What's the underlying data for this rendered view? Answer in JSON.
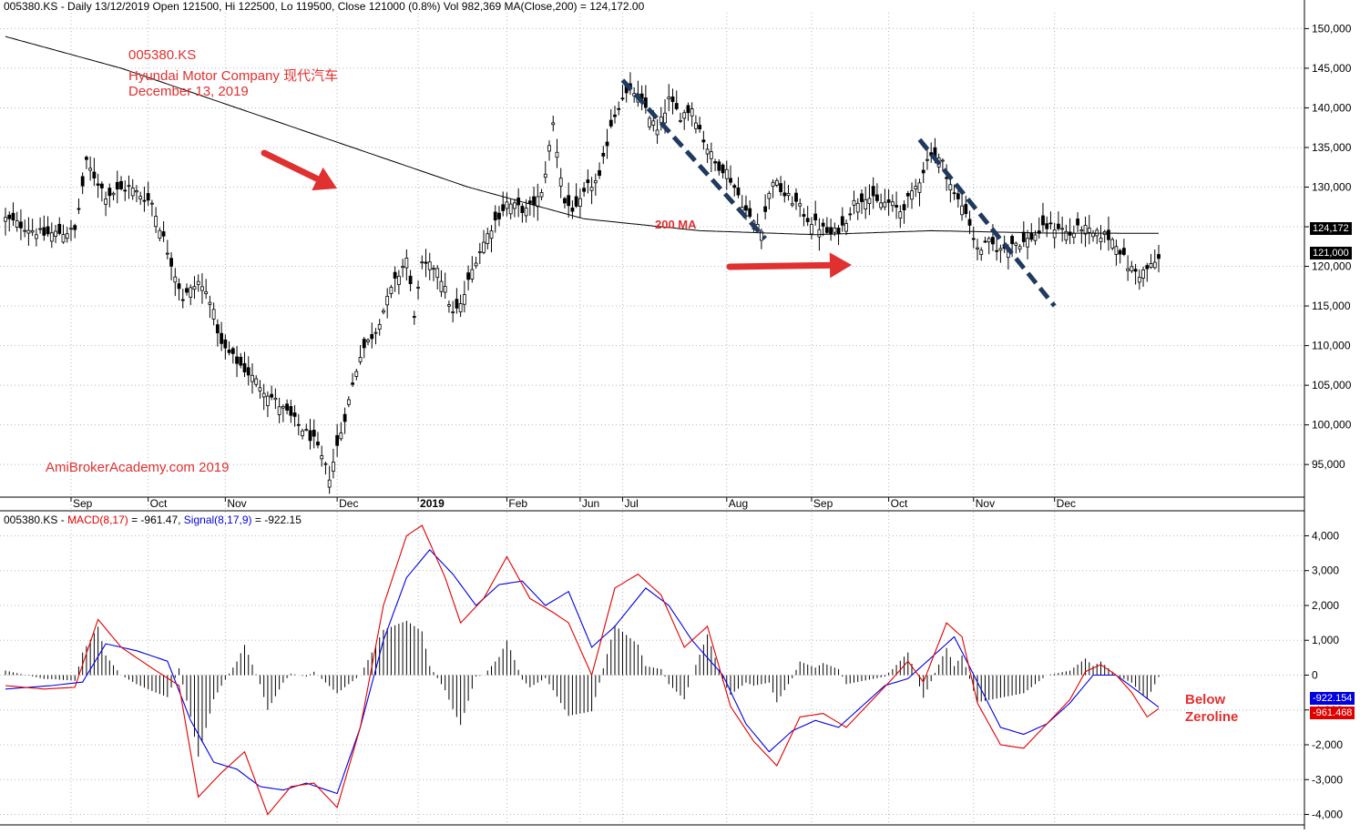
{
  "header": {
    "price_panel": "005380.KS - Daily 13/12/2019 Open 121500, Hi 122500, Lo 119500, Close 121000 (0.8%) Vol 982,369 MA(Close,200) = 124,172.00",
    "macd_prefix": "005380.KS - ",
    "macd_label": "MACD(8,17)",
    "macd_value": " = -961.47, ",
    "signal_label": "Signal(8,17,9)",
    "signal_value": " = -922.15"
  },
  "annotations": {
    "ticker": "005380.KS",
    "company": "Hyundai Motor Company  现代汽车",
    "date": "December 13, 2019",
    "watermark": "AmiBrokerAcademy.com  2019",
    "ma_label": "200 MA",
    "below_1": "Below",
    "below_2": "Zeroline"
  },
  "tags": {
    "ma": "124,172",
    "close": "121,000",
    "signal": "-922.154",
    "macd": "-961.468"
  },
  "colors": {
    "annotation": "#e03030",
    "macd": "#e00000",
    "signal": "#0000e0",
    "trendline": "#1f3a5f",
    "grid": "#b8b8b8"
  },
  "chart_data": [
    {
      "type": "candlestick",
      "title": "005380.KS - Daily 13/12/2019",
      "y_axis_side": "right",
      "ylim": [
        91000,
        152000
      ],
      "yticks": [
        95000,
        100000,
        105000,
        110000,
        115000,
        120000,
        125000,
        130000,
        135000,
        140000,
        145000,
        150000
      ],
      "ytick_labels": [
        "95,000",
        "100,000",
        "105,000",
        "110,000",
        "115,000",
        "120,000",
        "125,000",
        "130,000",
        "135,000",
        "140,000",
        "145,000",
        "150,000"
      ],
      "x_labels": [
        "Sep",
        "Oct",
        "Nov",
        "Dec",
        "2019",
        "Feb",
        "Jun",
        "Jul",
        "Aug",
        "Sep",
        "Oct",
        "Nov",
        "Dec"
      ],
      "close_key_points": [
        {
          "i": 0,
          "c": 126000
        },
        {
          "i": 10,
          "c": 124000
        },
        {
          "i": 18,
          "c": 124500
        },
        {
          "i": 21,
          "c": 133000
        },
        {
          "i": 26,
          "c": 129000
        },
        {
          "i": 32,
          "c": 130000
        },
        {
          "i": 38,
          "c": 128000
        },
        {
          "i": 42,
          "c": 122000
        },
        {
          "i": 46,
          "c": 116000
        },
        {
          "i": 50,
          "c": 118000
        },
        {
          "i": 53,
          "c": 116000
        },
        {
          "i": 56,
          "c": 110000
        },
        {
          "i": 62,
          "c": 107000
        },
        {
          "i": 68,
          "c": 104000
        },
        {
          "i": 74,
          "c": 101000
        },
        {
          "i": 80,
          "c": 98000
        },
        {
          "i": 84,
          "c": 93500
        },
        {
          "i": 88,
          "c": 101000
        },
        {
          "i": 92,
          "c": 109000
        },
        {
          "i": 96,
          "c": 112000
        },
        {
          "i": 100,
          "c": 117000
        },
        {
          "i": 104,
          "c": 121000
        },
        {
          "i": 106,
          "c": 114000
        },
        {
          "i": 108,
          "c": 120000
        },
        {
          "i": 112,
          "c": 120000
        },
        {
          "i": 116,
          "c": 114000
        },
        {
          "i": 118,
          "c": 115000
        },
        {
          "i": 122,
          "c": 121000
        },
        {
          "i": 126,
          "c": 125000
        },
        {
          "i": 130,
          "c": 128000
        },
        {
          "i": 135,
          "c": 127000
        },
        {
          "i": 139,
          "c": 129000
        },
        {
          "i": 142,
          "c": 138000
        },
        {
          "i": 145,
          "c": 128000
        },
        {
          "i": 148,
          "c": 127000
        },
        {
          "i": 151,
          "c": 130000
        },
        {
          "i": 154,
          "c": 131000
        },
        {
          "i": 157,
          "c": 138000
        },
        {
          "i": 160,
          "c": 141500
        },
        {
          "i": 163,
          "c": 142000
        },
        {
          "i": 166,
          "c": 140000
        },
        {
          "i": 169,
          "c": 137000
        },
        {
          "i": 172,
          "c": 141000
        },
        {
          "i": 175,
          "c": 139000
        },
        {
          "i": 178,
          "c": 140000
        },
        {
          "i": 181,
          "c": 136000
        },
        {
          "i": 184,
          "c": 133000
        },
        {
          "i": 187,
          "c": 132000
        },
        {
          "i": 190,
          "c": 129000
        },
        {
          "i": 193,
          "c": 126000
        },
        {
          "i": 196,
          "c": 125000
        },
        {
          "i": 199,
          "c": 131000
        },
        {
          "i": 202,
          "c": 129000
        },
        {
          "i": 205,
          "c": 128000
        },
        {
          "i": 208,
          "c": 126000
        },
        {
          "i": 211,
          "c": 125000
        },
        {
          "i": 214,
          "c": 124000
        },
        {
          "i": 217,
          "c": 125000
        },
        {
          "i": 220,
          "c": 128000
        },
        {
          "i": 223,
          "c": 129000
        },
        {
          "i": 226,
          "c": 128000
        },
        {
          "i": 229,
          "c": 128000
        },
        {
          "i": 232,
          "c": 127000
        },
        {
          "i": 235,
          "c": 129000
        },
        {
          "i": 237,
          "c": 131000
        },
        {
          "i": 240,
          "c": 134500
        },
        {
          "i": 243,
          "c": 133000
        },
        {
          "i": 246,
          "c": 129000
        },
        {
          "i": 249,
          "c": 127000
        },
        {
          "i": 252,
          "c": 122000
        },
        {
          "i": 255,
          "c": 123000
        },
        {
          "i": 258,
          "c": 122000
        },
        {
          "i": 261,
          "c": 123000
        },
        {
          "i": 264,
          "c": 123000
        },
        {
          "i": 267,
          "c": 124000
        },
        {
          "i": 270,
          "c": 125000
        },
        {
          "i": 273,
          "c": 125000
        },
        {
          "i": 276,
          "c": 124000
        },
        {
          "i": 279,
          "c": 125000
        },
        {
          "i": 282,
          "c": 124000
        },
        {
          "i": 285,
          "c": 124000
        },
        {
          "i": 288,
          "c": 123000
        },
        {
          "i": 291,
          "c": 120000
        },
        {
          "i": 294,
          "c": 119000
        },
        {
          "i": 297,
          "c": 120000
        },
        {
          "i": 299,
          "c": 121000
        }
      ],
      "ma200_key_points": [
        {
          "i": 0,
          "v": 149000
        },
        {
          "i": 30,
          "v": 145000
        },
        {
          "i": 60,
          "v": 140000
        },
        {
          "i": 90,
          "v": 135000
        },
        {
          "i": 120,
          "v": 130000
        },
        {
          "i": 150,
          "v": 126000
        },
        {
          "i": 180,
          "v": 124500
        },
        {
          "i": 210,
          "v": 124000
        },
        {
          "i": 240,
          "v": 124500
        },
        {
          "i": 270,
          "v": 124200
        },
        {
          "i": 299,
          "v": 124172
        }
      ],
      "last_close": 121000,
      "last_ma200": 124172
    },
    {
      "type": "line",
      "title": "MACD(8,17) / Signal(8,17,9)",
      "ylim": [
        -4300,
        4300
      ],
      "yticks": [
        -4000,
        -3000,
        -2000,
        -1000,
        0,
        1000,
        2000,
        3000,
        4000
      ],
      "ytick_labels": [
        "-4,000",
        "-3,000",
        "-2,000",
        "-1,000",
        "0",
        "1,000",
        "2,000",
        "3,000",
        "4,000"
      ],
      "series": [
        {
          "name": "MACD(8,17)",
          "key_points": [
            {
              "i": 0,
              "v": -300
            },
            {
              "i": 10,
              "v": -400
            },
            {
              "i": 18,
              "v": -350
            },
            {
              "i": 24,
              "v": 1600
            },
            {
              "i": 30,
              "v": 800
            },
            {
              "i": 38,
              "v": 200
            },
            {
              "i": 45,
              "v": -300
            },
            {
              "i": 50,
              "v": -3500
            },
            {
              "i": 56,
              "v": -2800
            },
            {
              "i": 62,
              "v": -2200
            },
            {
              "i": 68,
              "v": -4000
            },
            {
              "i": 74,
              "v": -3200
            },
            {
              "i": 80,
              "v": -3100
            },
            {
              "i": 86,
              "v": -3800
            },
            {
              "i": 92,
              "v": -1500
            },
            {
              "i": 98,
              "v": 2000
            },
            {
              "i": 104,
              "v": 4000
            },
            {
              "i": 108,
              "v": 4300
            },
            {
              "i": 114,
              "v": 2800
            },
            {
              "i": 118,
              "v": 1500
            },
            {
              "i": 124,
              "v": 2200
            },
            {
              "i": 130,
              "v": 3400
            },
            {
              "i": 136,
              "v": 2200
            },
            {
              "i": 142,
              "v": 1800
            },
            {
              "i": 146,
              "v": 1500
            },
            {
              "i": 152,
              "v": 0
            },
            {
              "i": 158,
              "v": 2500
            },
            {
              "i": 164,
              "v": 2900
            },
            {
              "i": 170,
              "v": 2300
            },
            {
              "i": 176,
              "v": 800
            },
            {
              "i": 182,
              "v": 1400
            },
            {
              "i": 188,
              "v": -900
            },
            {
              "i": 194,
              "v": -1900
            },
            {
              "i": 200,
              "v": -2600
            },
            {
              "i": 206,
              "v": -1200
            },
            {
              "i": 212,
              "v": -1100
            },
            {
              "i": 218,
              "v": -1500
            },
            {
              "i": 224,
              "v": -800
            },
            {
              "i": 230,
              "v": -100
            },
            {
              "i": 234,
              "v": 400
            },
            {
              "i": 238,
              "v": -200
            },
            {
              "i": 244,
              "v": 1500
            },
            {
              "i": 248,
              "v": 1100
            },
            {
              "i": 252,
              "v": -800
            },
            {
              "i": 258,
              "v": -2000
            },
            {
              "i": 264,
              "v": -2100
            },
            {
              "i": 270,
              "v": -1400
            },
            {
              "i": 276,
              "v": -700
            },
            {
              "i": 280,
              "v": 100
            },
            {
              "i": 284,
              "v": 300
            },
            {
              "i": 288,
              "v": 0
            },
            {
              "i": 292,
              "v": -500
            },
            {
              "i": 296,
              "v": -1200
            },
            {
              "i": 299,
              "v": -961
            }
          ]
        },
        {
          "name": "Signal(8,17,9)",
          "key_points": [
            {
              "i": 0,
              "v": -400
            },
            {
              "i": 12,
              "v": -300
            },
            {
              "i": 20,
              "v": -200
            },
            {
              "i": 26,
              "v": 900
            },
            {
              "i": 34,
              "v": 700
            },
            {
              "i": 42,
              "v": 400
            },
            {
              "i": 48,
              "v": -1300
            },
            {
              "i": 54,
              "v": -2500
            },
            {
              "i": 60,
              "v": -2700
            },
            {
              "i": 66,
              "v": -3200
            },
            {
              "i": 72,
              "v": -3300
            },
            {
              "i": 78,
              "v": -3100
            },
            {
              "i": 86,
              "v": -3400
            },
            {
              "i": 92,
              "v": -1500
            },
            {
              "i": 98,
              "v": 1000
            },
            {
              "i": 104,
              "v": 2800
            },
            {
              "i": 110,
              "v": 3600
            },
            {
              "i": 116,
              "v": 2900
            },
            {
              "i": 122,
              "v": 2000
            },
            {
              "i": 128,
              "v": 2600
            },
            {
              "i": 134,
              "v": 2700
            },
            {
              "i": 140,
              "v": 2000
            },
            {
              "i": 146,
              "v": 2400
            },
            {
              "i": 152,
              "v": 800
            },
            {
              "i": 158,
              "v": 1400
            },
            {
              "i": 166,
              "v": 2500
            },
            {
              "i": 172,
              "v": 2000
            },
            {
              "i": 178,
              "v": 1000
            },
            {
              "i": 186,
              "v": 0
            },
            {
              "i": 192,
              "v": -1400
            },
            {
              "i": 198,
              "v": -2200
            },
            {
              "i": 204,
              "v": -1600
            },
            {
              "i": 210,
              "v": -1300
            },
            {
              "i": 216,
              "v": -1500
            },
            {
              "i": 222,
              "v": -900
            },
            {
              "i": 228,
              "v": -300
            },
            {
              "i": 234,
              "v": -100
            },
            {
              "i": 240,
              "v": 500
            },
            {
              "i": 246,
              "v": 1100
            },
            {
              "i": 252,
              "v": -200
            },
            {
              "i": 258,
              "v": -1500
            },
            {
              "i": 264,
              "v": -1700
            },
            {
              "i": 270,
              "v": -1400
            },
            {
              "i": 276,
              "v": -800
            },
            {
              "i": 282,
              "v": 0
            },
            {
              "i": 288,
              "v": 0
            },
            {
              "i": 294,
              "v": -500
            },
            {
              "i": 299,
              "v": -922
            }
          ]
        }
      ],
      "histogram": "MACD minus Signal",
      "last_macd": -961.468,
      "last_signal": -922.154
    }
  ]
}
